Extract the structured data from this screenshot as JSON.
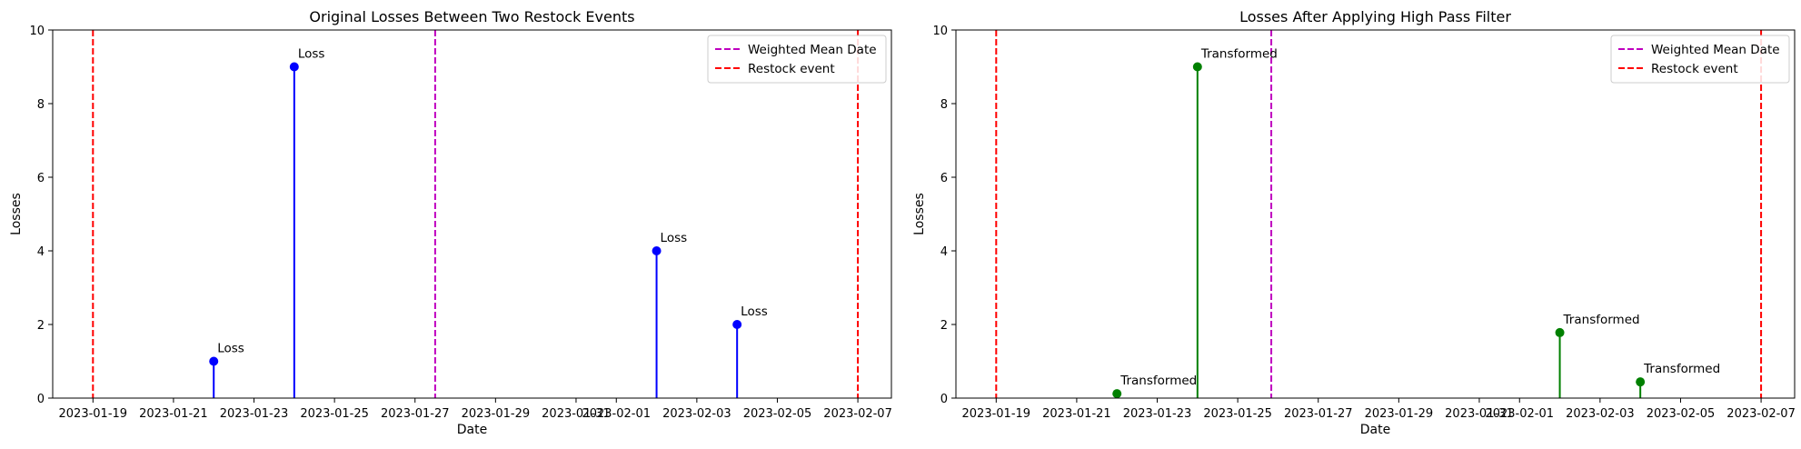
{
  "chart_data": [
    {
      "type": "stem",
      "title": "Original Losses Between Two Restock Events",
      "xlabel": "Date",
      "ylabel": "Losses",
      "xlim": [
        "2023-01-18",
        "2023-02-07T20:00"
      ],
      "ylim": [
        0,
        10
      ],
      "y_ticks": [
        0,
        2,
        4,
        6,
        8,
        10
      ],
      "x_ticks": [
        "2023-01-19",
        "2023-01-21",
        "2023-01-23",
        "2023-01-25",
        "2023-01-27",
        "2023-01-29",
        "2023-01-31",
        "2023-02-01",
        "2023-02-03",
        "2023-02-05",
        "2023-02-07"
      ],
      "series": [
        {
          "color": "#0000ff",
          "x": [
            "2023-01-22",
            "2023-01-24",
            "2023-02-02",
            "2023-02-04"
          ],
          "values": [
            1,
            9,
            4,
            2
          ],
          "point_labels": [
            "Loss",
            "Loss",
            "Loss",
            "Loss"
          ]
        }
      ],
      "vlines": [
        {
          "name": "Weighted Mean Date",
          "x": "2023-01-27T12:00",
          "color": "#bf00bf",
          "style": "dashed"
        },
        {
          "name": "Restock event",
          "x": "2023-01-19",
          "color": "#ff0000",
          "style": "dashed"
        },
        {
          "name": "Restock event",
          "x": "2023-02-07",
          "color": "#ff0000",
          "style": "dashed"
        }
      ],
      "legend": {
        "position": "top-right",
        "entries": [
          {
            "label": "Weighted Mean Date",
            "color": "#bf00bf"
          },
          {
            "label": "Restock event",
            "color": "#ff0000"
          }
        ]
      },
      "grid": false
    },
    {
      "type": "stem",
      "title": "Losses After Applying High Pass Filter",
      "xlabel": "Date",
      "ylabel": "Losses",
      "xlim": [
        "2023-01-18",
        "2023-02-07T20:00"
      ],
      "ylim": [
        0,
        10
      ],
      "y_ticks": [
        0,
        2,
        4,
        6,
        8,
        10
      ],
      "x_ticks": [
        "2023-01-19",
        "2023-01-21",
        "2023-01-23",
        "2023-01-25",
        "2023-01-27",
        "2023-01-29",
        "2023-01-31",
        "2023-02-01",
        "2023-02-03",
        "2023-02-05",
        "2023-02-07"
      ],
      "series": [
        {
          "color": "#008000",
          "x": [
            "2023-01-22",
            "2023-01-24",
            "2023-02-02",
            "2023-02-04"
          ],
          "values": [
            0.12,
            9.0,
            1.78,
            0.44
          ],
          "point_labels": [
            "Transformed",
            "Transformed",
            "Transformed",
            "Transformed"
          ]
        }
      ],
      "vlines": [
        {
          "name": "Weighted Mean Date",
          "x": "2023-01-25T20:00",
          "color": "#bf00bf",
          "style": "dashed"
        },
        {
          "name": "Restock event",
          "x": "2023-01-19",
          "color": "#ff0000",
          "style": "dashed"
        },
        {
          "name": "Restock event",
          "x": "2023-02-07",
          "color": "#ff0000",
          "style": "dashed"
        }
      ],
      "legend": {
        "position": "top-right",
        "entries": [
          {
            "label": "Weighted Mean Date",
            "color": "#bf00bf"
          },
          {
            "label": "Restock event",
            "color": "#ff0000"
          }
        ]
      },
      "grid": false
    }
  ]
}
